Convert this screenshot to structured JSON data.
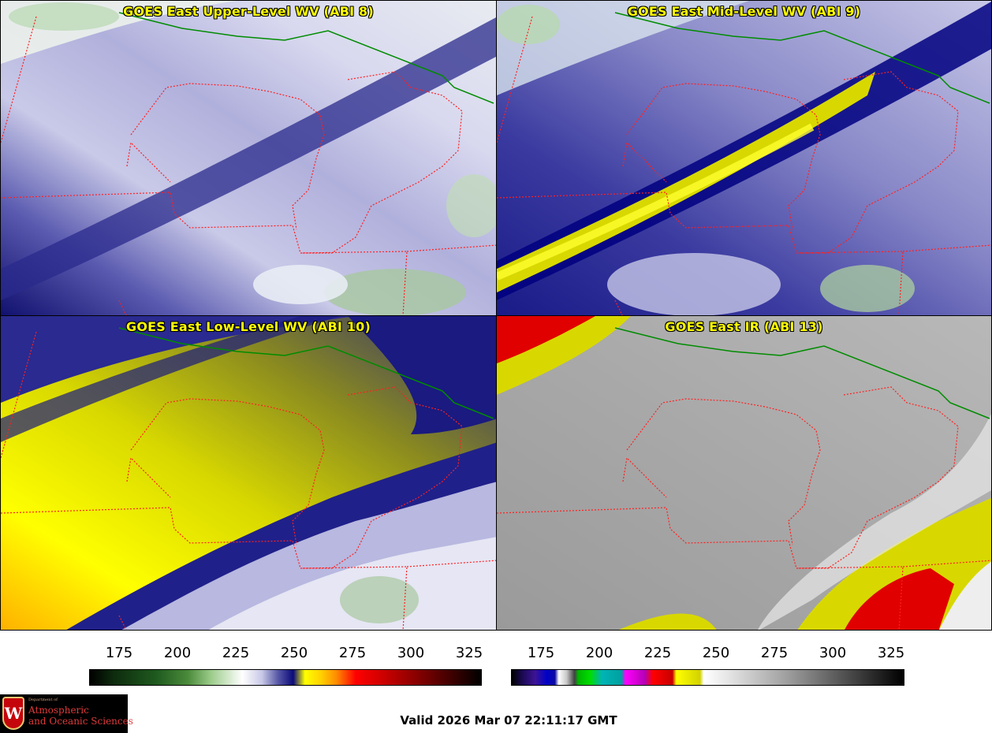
{
  "panels": [
    {
      "title": "GOES East Upper-Level WV (ABI 8)",
      "product": "upper-wv"
    },
    {
      "title": "GOES East Mid-Level WV (ABI 9)",
      "product": "mid-wv"
    },
    {
      "title": "GOES East Low-Level WV (ABI 10)",
      "product": "low-wv"
    },
    {
      "title": "GOES East IR (ABI 13)",
      "product": "ir"
    }
  ],
  "colorbars": [
    {
      "name": "wv-colorbar",
      "ticks": [
        "175",
        "200",
        "225",
        "250",
        "275",
        "300",
        "325"
      ],
      "range": [
        160,
        328
      ]
    },
    {
      "name": "ir-colorbar",
      "ticks": [
        "175",
        "200",
        "225",
        "250",
        "275",
        "300",
        "325"
      ],
      "range": [
        160,
        328
      ]
    }
  ],
  "logo": {
    "crest_letter": "W",
    "small_text": "Department of",
    "line1": "Atmospheric",
    "line2": "and Oceanic Sciences"
  },
  "valid_time": "Valid 2026 Mar 07 22:11:17 GMT",
  "colors": {
    "state_border": "#ff2020",
    "intl_border": "#008c00",
    "coast_border": "#8b4513",
    "title_text": "#ffff00"
  }
}
